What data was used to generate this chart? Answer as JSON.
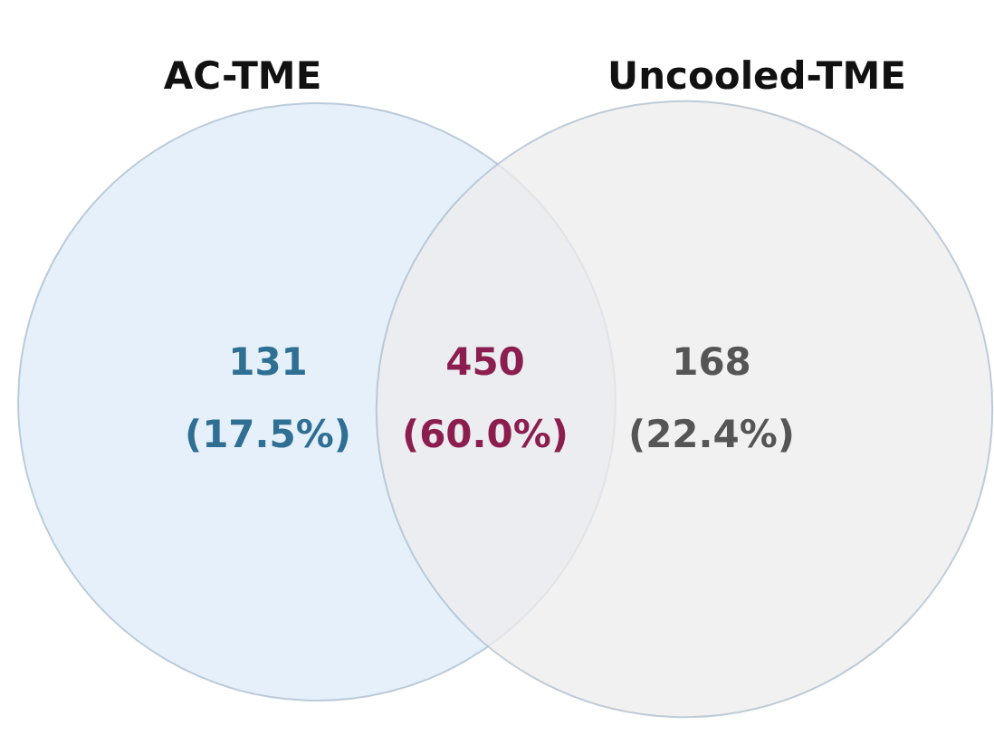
{
  "chart_data": {
    "type": "other",
    "annotations": [
      "AC-TME",
      "Uncooled-TME"
    ],
    "categories": [
      null,
      null,
      null
    ],
    "values": [
      17.5,
      60.0,
      22.4
    ],
    "value_labels": [
      "131\n(17.5%)",
      "450\n(60.0%)",
      "168\n(22.4%)"
    ],
    "colors": [
      "#2e6f93",
      "#8b1e4f",
      "#555555"
    ]
  }
}
